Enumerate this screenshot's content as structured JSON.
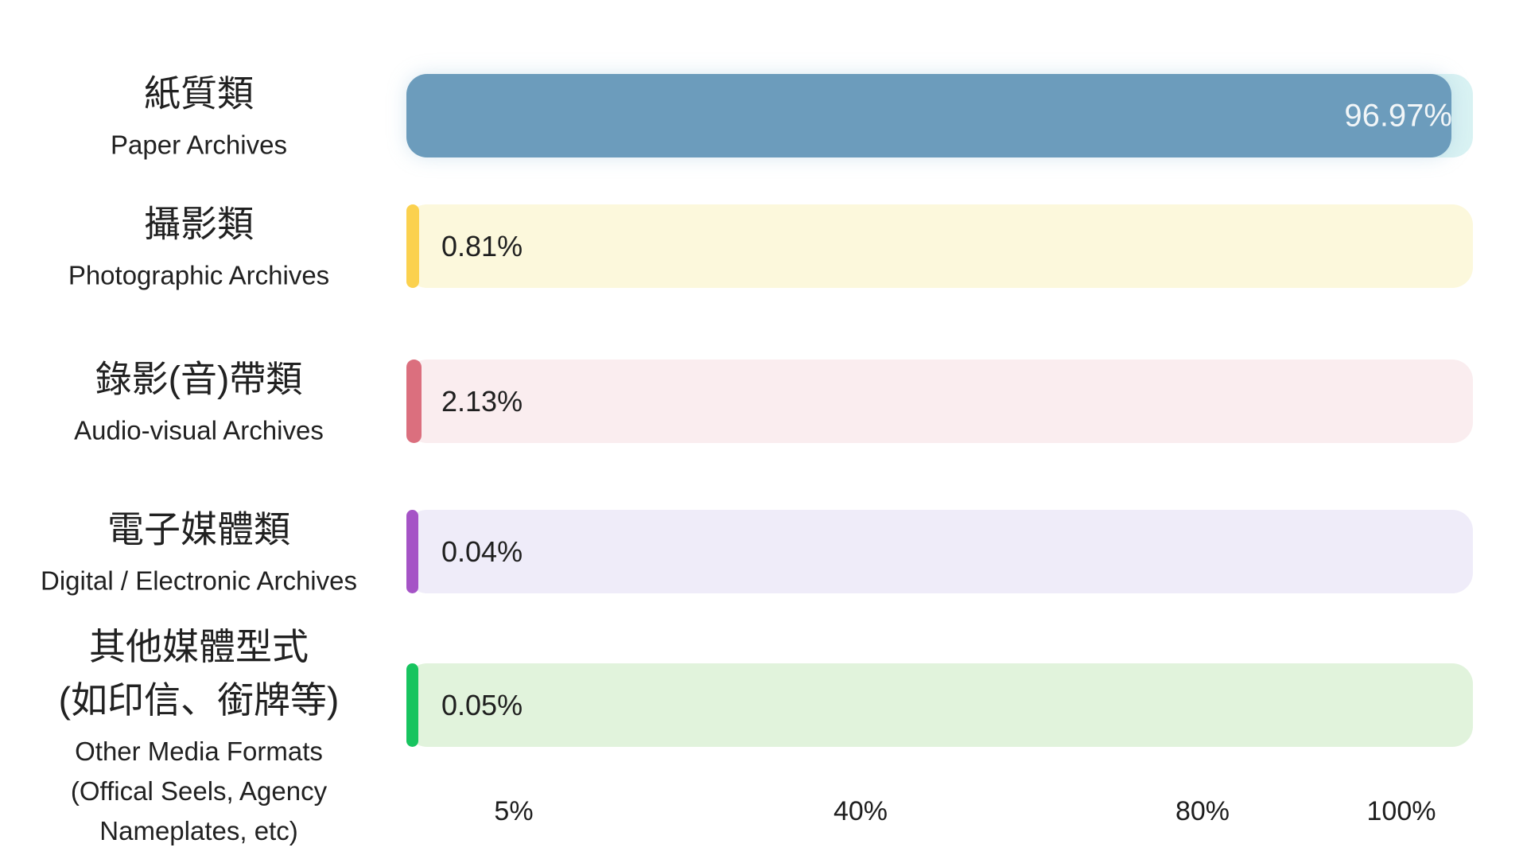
{
  "background": "#ffffff",
  "text_color": "#212121",
  "chart_data": {
    "type": "bar",
    "orientation": "horizontal",
    "title": "",
    "grid": false,
    "legend": "none",
    "x_axis": {
      "ticks": [
        "5%",
        "40%",
        "80%",
        "100%"
      ],
      "range": [
        0,
        100
      ]
    },
    "categories": [
      "紙質類 / Paper Archives",
      "攝影類 / Photographic Archives",
      "錄影(音)帶類 / Audio-visual Archives",
      "電子媒體類 / Digital / Electronic Archives",
      "其他媒體型式 (如印信、銜牌等) / Other Media Formats (Offical Seels, Agency Nameplates, etc)"
    ],
    "values": [
      96.97,
      0.81,
      2.13,
      0.04,
      0.05
    ],
    "rows": [
      {
        "label_zh": [
          "紙質類"
        ],
        "label_en": [
          "Paper Archives"
        ],
        "value": 96.97,
        "value_label": "96.97%",
        "bar_color": "#6C9CBC",
        "track_color": "#D9F2F3",
        "value_placement": "inside-right"
      },
      {
        "label_zh": [
          "攝影類"
        ],
        "label_en": [
          "Photographic Archives"
        ],
        "value": 0.81,
        "value_label": "0.81%",
        "bar_color": "#FBD14E",
        "track_color": "#FCF8DC",
        "value_placement": "inside-left"
      },
      {
        "label_zh": [
          "錄影(音)帶類"
        ],
        "label_en": [
          "Audio-visual Archives"
        ],
        "value": 2.13,
        "value_label": "2.13%",
        "bar_color": "#DB6F7E",
        "track_color": "#FAEDEF",
        "value_placement": "inside-left"
      },
      {
        "label_zh": [
          "電子媒體類"
        ],
        "label_en": [
          "Digital / Electronic Archives"
        ],
        "value": 0.04,
        "value_label": "0.04%",
        "bar_color": "#A553C6",
        "track_color": "#EFECF9",
        "value_placement": "inside-left"
      },
      {
        "label_zh": [
          "其他媒體型式",
          "(如印信、銜牌等)"
        ],
        "label_en": [
          "Other Media Formats",
          "(Offical Seels, Agency",
          "Nameplates, etc)"
        ],
        "value": 0.05,
        "value_label": "0.05%",
        "bar_color": "#17C45F",
        "track_color": "#E1F3DC",
        "value_placement": "inside-left"
      }
    ]
  }
}
